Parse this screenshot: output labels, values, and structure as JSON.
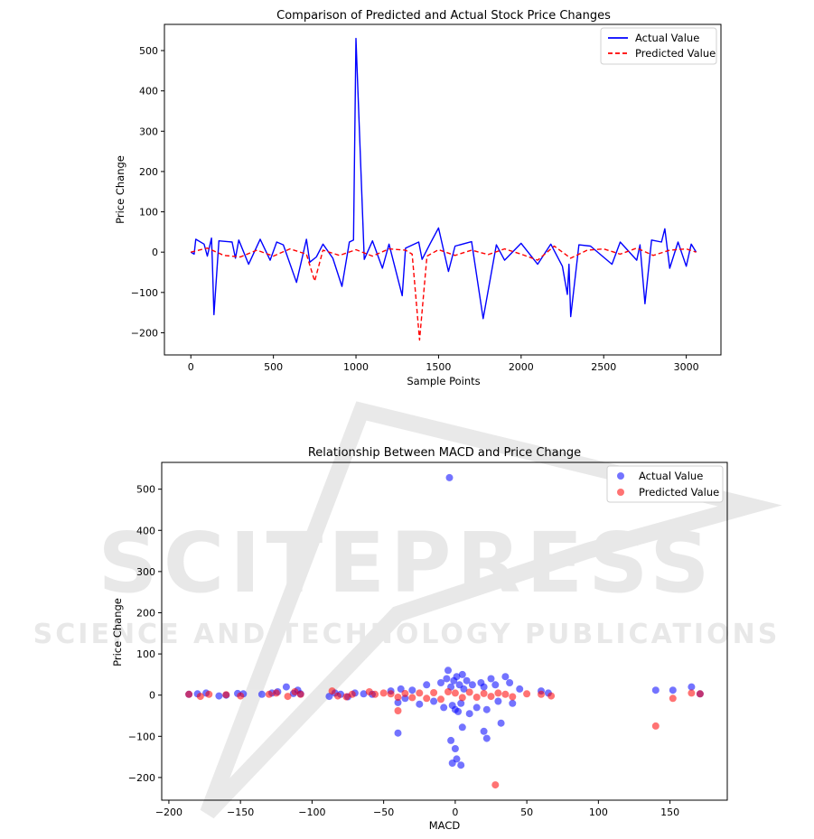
{
  "watermark": {
    "brand": "SCITEPRESS",
    "tagline": "SCIENCE AND TECHNOLOGY PUBLICATIONS"
  },
  "chart_data": [
    {
      "type": "line",
      "title": "Comparison of Predicted and Actual Stock Price Changes",
      "xlabel": "Sample Points",
      "ylabel": "Price Change",
      "xlim": [
        -160,
        3210
      ],
      "ylim": [
        -255,
        565
      ],
      "xticks": [
        0,
        500,
        1000,
        1500,
        2000,
        2500,
        3000
      ],
      "yticks": [
        -200,
        -100,
        0,
        100,
        200,
        300,
        400,
        500
      ],
      "grid": false,
      "legend": "top-right",
      "series": [
        {
          "name": "Actual Value",
          "color": "#0000ff",
          "style": "solid",
          "x": [
            0,
            20,
            30,
            80,
            100,
            125,
            130,
            140,
            170,
            250,
            270,
            290,
            350,
            420,
            480,
            520,
            560,
            640,
            700,
            720,
            760,
            800,
            860,
            915,
            960,
            985,
            1000,
            1050,
            1100,
            1160,
            1200,
            1280,
            1300,
            1380,
            1400,
            1450,
            1500,
            1560,
            1600,
            1700,
            1770,
            1850,
            1900,
            2000,
            2100,
            2180,
            2250,
            2280,
            2290,
            2300,
            2350,
            2420,
            2550,
            2600,
            2700,
            2720,
            2750,
            2790,
            2850,
            2870,
            2900,
            2950,
            3000,
            3030,
            3060
          ],
          "y": [
            0,
            -5,
            32,
            20,
            -10,
            35,
            -20,
            -155,
            28,
            25,
            -15,
            30,
            -30,
            32,
            -20,
            25,
            18,
            -75,
            32,
            -25,
            -12,
            20,
            -15,
            -85,
            25,
            30,
            530,
            -18,
            28,
            -40,
            20,
            -108,
            10,
            25,
            -18,
            22,
            60,
            -48,
            15,
            26,
            -165,
            18,
            -20,
            22,
            -30,
            20,
            -35,
            -105,
            -30,
            -160,
            18,
            15,
            -30,
            25,
            -20,
            18,
            -128,
            30,
            25,
            58,
            -40,
            25,
            -35,
            20,
            0
          ]
        },
        {
          "name": "Predicted Value",
          "color": "#ff0000",
          "style": "dashed",
          "x": [
            0,
            100,
            200,
            300,
            400,
            500,
            600,
            700,
            750,
            800,
            900,
            1000,
            1100,
            1200,
            1300,
            1340,
            1385,
            1430,
            1500,
            1600,
            1700,
            1800,
            1900,
            2000,
            2100,
            2200,
            2300,
            2400,
            2500,
            2600,
            2700,
            2800,
            2900,
            3000,
            3060
          ],
          "y": [
            0,
            10,
            -8,
            -12,
            5,
            -10,
            8,
            -5,
            -72,
            5,
            -8,
            6,
            -10,
            8,
            5,
            -5,
            -218,
            -10,
            6,
            -8,
            5,
            -6,
            8,
            -5,
            -20,
            15,
            -15,
            5,
            8,
            -5,
            10,
            -8,
            5,
            8,
            0
          ]
        }
      ]
    },
    {
      "type": "scatter",
      "title": "Relationship Between MACD and Price Change",
      "xlabel": "MACD",
      "ylabel": "Price Change",
      "xlim": [
        -205,
        190
      ],
      "ylim": [
        -255,
        565
      ],
      "xticks": [
        -200,
        -150,
        -100,
        -50,
        0,
        50,
        100,
        150
      ],
      "yticks": [
        -200,
        -100,
        0,
        100,
        200,
        300,
        400,
        500
      ],
      "grid": false,
      "legend": "top-right",
      "series": [
        {
          "name": "Actual Value",
          "color": "#0000ff",
          "opacity": 0.55,
          "x": [
            -186,
            -180,
            -174,
            -165,
            -160,
            -152,
            -148,
            -135,
            -128,
            -124,
            -118,
            -113,
            -110,
            -108,
            -88,
            -84,
            -80,
            -75,
            -70,
            -64,
            -58,
            -45,
            -40,
            -38,
            -35,
            -30,
            -25,
            -20,
            -15,
            -10,
            -8,
            -6,
            -5,
            -4,
            -3,
            -2,
            -1,
            0,
            1,
            2,
            3,
            4,
            5,
            6,
            8,
            10,
            12,
            15,
            18,
            20,
            22,
            25,
            28,
            30,
            35,
            38,
            40,
            45,
            60,
            65,
            140,
            152,
            165,
            171,
            -40,
            5,
            20,
            22,
            32,
            -2,
            1,
            0,
            4,
            -3
          ],
          "y": [
            2,
            3,
            5,
            -2,
            0,
            4,
            3,
            2,
            5,
            8,
            20,
            4,
            12,
            3,
            -3,
            5,
            2,
            -4,
            5,
            3,
            2,
            10,
            -18,
            15,
            -8,
            12,
            -22,
            25,
            -15,
            30,
            -30,
            40,
            60,
            528,
            20,
            -25,
            35,
            -35,
            45,
            -40,
            25,
            -20,
            50,
            15,
            35,
            -45,
            25,
            -30,
            30,
            20,
            -35,
            40,
            25,
            -15,
            45,
            30,
            -20,
            15,
            10,
            5,
            12,
            12,
            20,
            3,
            -92,
            -78,
            -88,
            -105,
            -68,
            -165,
            -155,
            -130,
            -170,
            -110
          ]
        },
        {
          "name": "Predicted Value",
          "color": "#ff0000",
          "opacity": 0.55,
          "x": [
            -186,
            -178,
            -172,
            -160,
            -150,
            -130,
            -125,
            -117,
            -112,
            -108,
            -86,
            -82,
            -76,
            -72,
            -60,
            -56,
            -50,
            -45,
            -40,
            -35,
            -30,
            -25,
            -20,
            -15,
            -10,
            -5,
            0,
            5,
            10,
            15,
            20,
            25,
            30,
            35,
            40,
            50,
            60,
            67,
            140,
            152,
            165,
            171,
            28,
            -40
          ],
          "y": [
            2,
            -3,
            2,
            1,
            -2,
            2,
            5,
            -3,
            8,
            2,
            10,
            -2,
            -4,
            2,
            8,
            2,
            5,
            3,
            -5,
            4,
            -6,
            5,
            -8,
            6,
            -10,
            8,
            5,
            -6,
            7,
            -5,
            4,
            -3,
            5,
            2,
            -4,
            3,
            2,
            -2,
            -75,
            -8,
            5,
            3,
            -218,
            -38
          ]
        }
      ]
    }
  ]
}
